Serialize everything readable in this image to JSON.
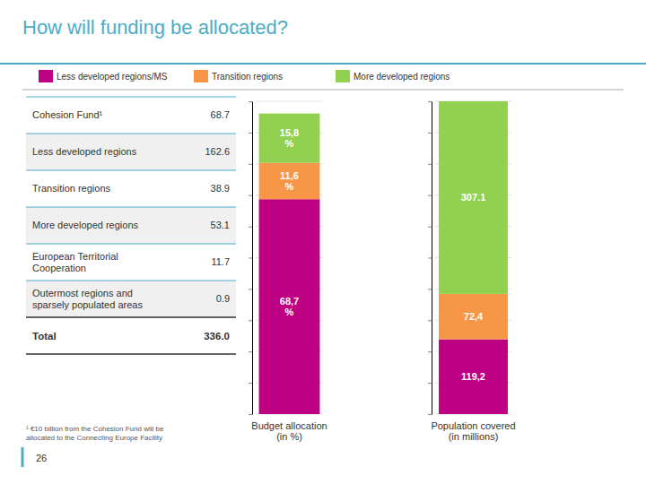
{
  "chart_data": [
    {
      "type": "table",
      "title": "How will funding be allocated?",
      "categories": [
        "Cohesion Fund¹",
        "Less developed regions",
        "Transition regions",
        "More developed regions",
        "European Territorial\nCooperation",
        "Outermost regions and\nsparsely populated areas",
        "Total"
      ],
      "values": [
        68.7,
        162.6,
        38.9,
        53.1,
        11.7,
        0.9,
        336.0
      ],
      "value_labels": [
        "68.7",
        "162.6",
        "38.9",
        "53.1",
        "11.7",
        "0.9",
        "336.0"
      ],
      "annotations": [
        "¹ €10 billion from the Cohesion Fund will be\nallocated to the Connecting Europe Facility",
        "26"
      ]
    },
    {
      "type": "bar",
      "stacked": true,
      "xlabel": "Budget allocation\n(in %)",
      "categories": [
        null
      ],
      "series": [
        {
          "name": "Less developed regions/MS",
          "color": "#BE0082",
          "values": [
            68.7
          ],
          "value_labels": [
            "68,7\n%"
          ]
        },
        {
          "name": "Transition regions",
          "color": "#F79646",
          "values": [
            11.6
          ],
          "value_labels": [
            "11,6\n%"
          ]
        },
        {
          "name": "More developed regions",
          "color": "#92D050",
          "values": [
            15.8
          ],
          "value_labels": [
            "15,8\n%"
          ]
        }
      ],
      "ylim": [
        0,
        100
      ],
      "yticks": [
        0,
        10,
        20,
        30,
        40,
        50,
        60,
        70,
        80,
        90,
        100
      ],
      "grid": true,
      "tick_labels": false,
      "data_labels": true,
      "legend": "top"
    },
    {
      "type": "bar",
      "stacked": true,
      "xlabel": "Population covered\n(in millions)",
      "categories": [
        null
      ],
      "series": [
        {
          "color": "#BE0082",
          "values": [
            119.2
          ],
          "value_labels": [
            "119,2"
          ]
        },
        {
          "color": "#F79646",
          "values": [
            72.4
          ],
          "value_labels": [
            "72,4"
          ]
        },
        {
          "color": "#92D050",
          "values": [
            307.1
          ],
          "value_labels": [
            "307.1"
          ]
        }
      ],
      "ylim": [
        0,
        498.7
      ],
      "yticks": [
        0,
        49.87,
        99.74,
        149.61,
        199.48,
        249.35,
        299.22,
        349.09,
        398.96,
        448.83,
        498.7
      ],
      "grid": true,
      "tick_labels": false,
      "data_labels": true
    }
  ]
}
